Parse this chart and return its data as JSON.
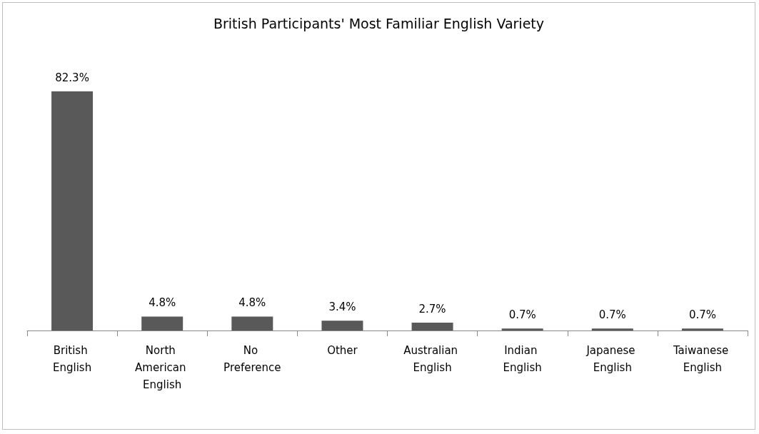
{
  "chart_data": {
    "type": "bar",
    "title": "British Participants' Most Familiar English Variety",
    "categories": [
      "British English",
      "North American English",
      "No Preference",
      "Other",
      "Australian English",
      "Indian English",
      "Japanese English",
      "Taiwanese English"
    ],
    "values": [
      82.3,
      4.8,
      4.8,
      3.4,
      2.7,
      0.7,
      0.7,
      0.7
    ],
    "value_labels": [
      "82.3%",
      "4.8%",
      "4.8%",
      "3.4%",
      "2.7%",
      "0.7%",
      "0.7%",
      "0.7%"
    ],
    "color": "#595959"
  }
}
